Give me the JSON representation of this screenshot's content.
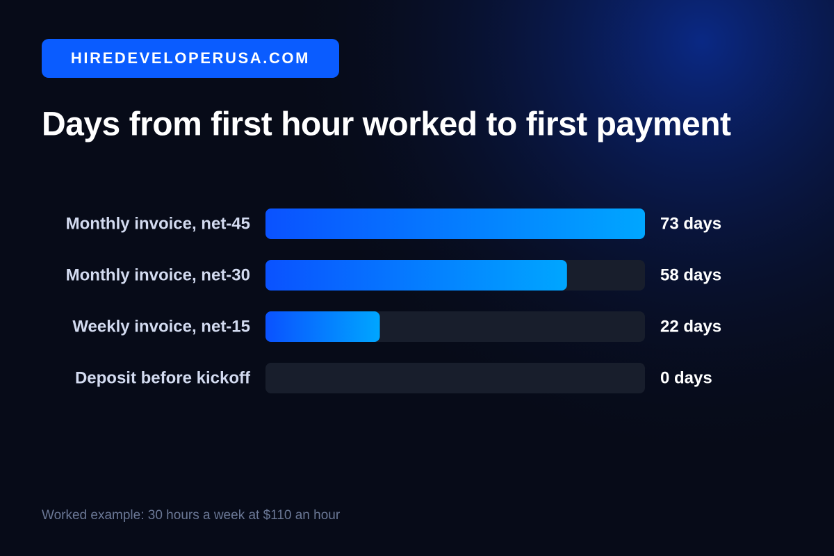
{
  "chart_data": {
    "type": "hbar",
    "brand": "HIREDEVELOPERUSA.COM",
    "title": "Days from first hour worked to first payment",
    "categories": [
      "Monthly invoice, net-45",
      "Monthly invoice, net-30",
      "Weekly invoice, net-15",
      "Deposit before kickoff"
    ],
    "values": [
      73,
      58,
      22,
      0
    ],
    "value_labels": [
      "73 days",
      "58 days",
      "22 days",
      "0 days"
    ],
    "xlim": [
      0,
      73
    ],
    "gradient": [
      "#0a52ff",
      "#00a6ff"
    ],
    "footnote": "Worked example: 30 hours a week at $110 an hour"
  }
}
